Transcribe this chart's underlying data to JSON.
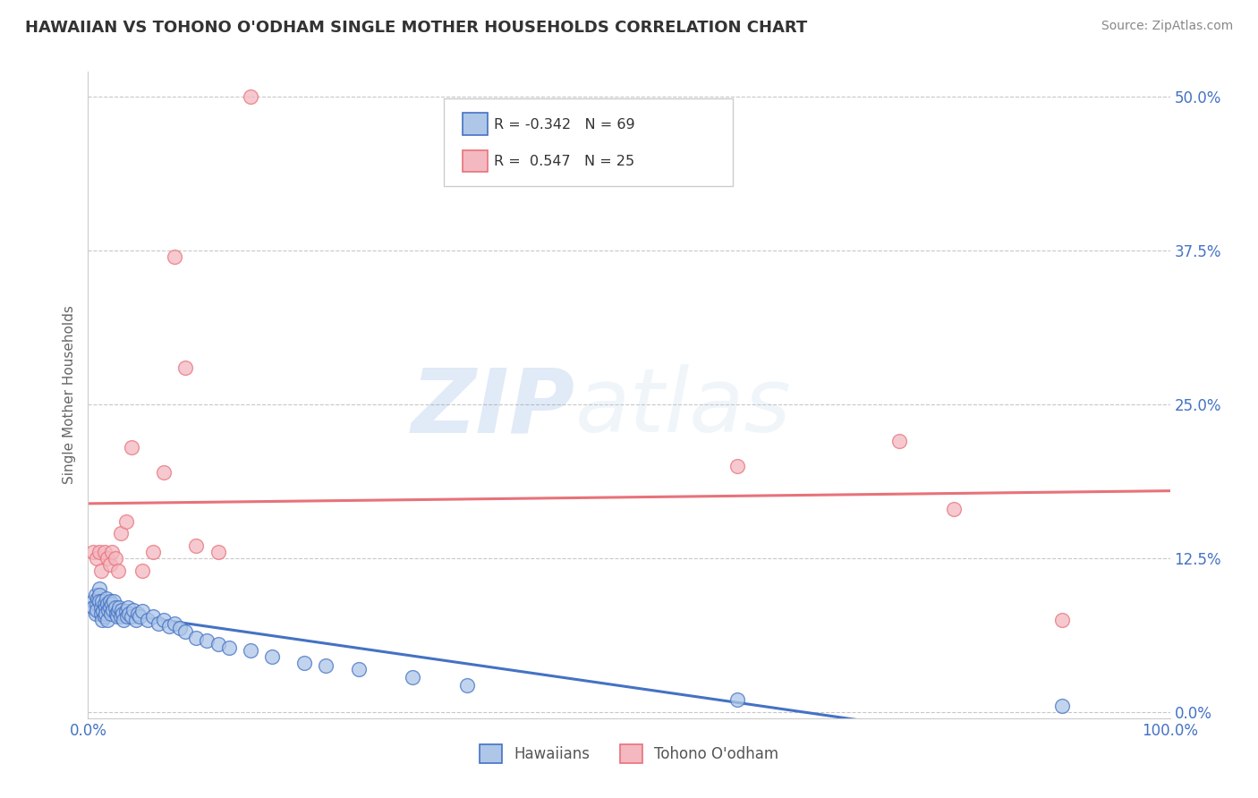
{
  "title": "HAWAIIAN VS TOHONO O'ODHAM SINGLE MOTHER HOUSEHOLDS CORRELATION CHART",
  "source": "Source: ZipAtlas.com",
  "ylabel": "Single Mother Households",
  "xlim": [
    0.0,
    1.0
  ],
  "ylim": [
    -0.005,
    0.52
  ],
  "yticks": [
    0.0,
    0.125,
    0.25,
    0.375,
    0.5
  ],
  "ytick_labels": [
    "0.0%",
    "12.5%",
    "25.0%",
    "37.5%",
    "50.0%"
  ],
  "xtick_labels": [
    "0.0%",
    "100.0%"
  ],
  "xticks": [
    0.0,
    1.0
  ],
  "hawaiian_color": "#aec6e8",
  "tohono_color": "#f4b8c1",
  "hawaiian_line_color": "#4472c4",
  "tohono_line_color": "#e8727a",
  "r_hawaiian": -0.342,
  "n_hawaiian": 69,
  "r_tohono": 0.547,
  "n_tohono": 25,
  "legend_label_1": "Hawaiians",
  "legend_label_2": "Tohono O'odham",
  "hawaiian_x": [
    0.005,
    0.005,
    0.007,
    0.007,
    0.008,
    0.008,
    0.009,
    0.01,
    0.01,
    0.01,
    0.012,
    0.012,
    0.013,
    0.013,
    0.014,
    0.015,
    0.015,
    0.016,
    0.016,
    0.017,
    0.018,
    0.018,
    0.019,
    0.02,
    0.02,
    0.021,
    0.022,
    0.023,
    0.024,
    0.025,
    0.026,
    0.027,
    0.028,
    0.029,
    0.03,
    0.031,
    0.032,
    0.033,
    0.035,
    0.036,
    0.037,
    0.038,
    0.04,
    0.042,
    0.044,
    0.046,
    0.048,
    0.05,
    0.055,
    0.06,
    0.065,
    0.07,
    0.075,
    0.08,
    0.085,
    0.09,
    0.1,
    0.11,
    0.12,
    0.13,
    0.15,
    0.17,
    0.2,
    0.22,
    0.25,
    0.3,
    0.35,
    0.6,
    0.9
  ],
  "hawaiian_y": [
    0.09,
    0.085,
    0.095,
    0.08,
    0.088,
    0.083,
    0.092,
    0.1,
    0.095,
    0.09,
    0.085,
    0.08,
    0.075,
    0.09,
    0.082,
    0.088,
    0.078,
    0.085,
    0.08,
    0.092,
    0.075,
    0.088,
    0.083,
    0.09,
    0.085,
    0.08,
    0.088,
    0.083,
    0.09,
    0.085,
    0.08,
    0.078,
    0.082,
    0.085,
    0.078,
    0.083,
    0.08,
    0.075,
    0.082,
    0.078,
    0.085,
    0.08,
    0.078,
    0.083,
    0.075,
    0.08,
    0.078,
    0.082,
    0.075,
    0.078,
    0.072,
    0.075,
    0.07,
    0.072,
    0.068,
    0.065,
    0.06,
    0.058,
    0.055,
    0.052,
    0.05,
    0.045,
    0.04,
    0.038,
    0.035,
    0.028,
    0.022,
    0.01,
    0.005
  ],
  "tohono_x": [
    0.005,
    0.008,
    0.01,
    0.012,
    0.015,
    0.018,
    0.02,
    0.022,
    0.025,
    0.028,
    0.03,
    0.035,
    0.04,
    0.05,
    0.06,
    0.07,
    0.08,
    0.09,
    0.1,
    0.12,
    0.15,
    0.6,
    0.75,
    0.8,
    0.9
  ],
  "tohono_y": [
    0.13,
    0.125,
    0.13,
    0.115,
    0.13,
    0.125,
    0.12,
    0.13,
    0.125,
    0.115,
    0.145,
    0.155,
    0.215,
    0.115,
    0.13,
    0.195,
    0.37,
    0.28,
    0.135,
    0.13,
    0.5,
    0.2,
    0.22,
    0.165,
    0.075
  ],
  "background_color": "#ffffff",
  "grid_color": "#c8c8c8",
  "title_color": "#333333",
  "source_color": "#888888",
  "watermark_color": "#dce8f5"
}
